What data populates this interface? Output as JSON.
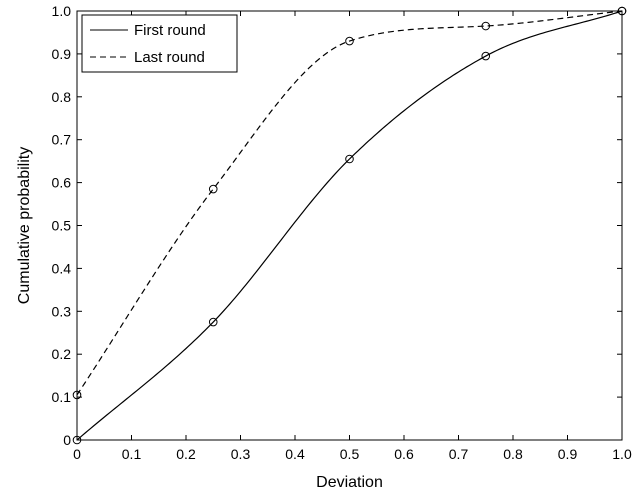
{
  "chart_data": {
    "type": "line",
    "xlabel": "Deviation",
    "ylabel": "Cumulative probability",
    "xlim": [
      0,
      1
    ],
    "ylim": [
      0,
      1
    ],
    "xticks": [
      "0",
      "0.1",
      "0.2",
      "0.3",
      "0.4",
      "0.5",
      "0.6",
      "0.7",
      "0.8",
      "0.9",
      "1.0"
    ],
    "yticks": [
      "0",
      "0.1",
      "0.2",
      "0.3",
      "0.4",
      "0.5",
      "0.6",
      "0.7",
      "0.8",
      "0.9",
      "1.0"
    ],
    "legend_position": "top-left",
    "grid": false,
    "series": [
      {
        "name": "First round",
        "line_style": "solid",
        "color": "#000000",
        "x": [
          0,
          0.25,
          0.5,
          0.75,
          1.0
        ],
        "y": [
          0,
          0.275,
          0.655,
          0.895,
          1.0
        ]
      },
      {
        "name": "Last round",
        "line_style": "dashed",
        "color": "#000000",
        "x": [
          0,
          0.25,
          0.5,
          0.75,
          1.0
        ],
        "y": [
          0.105,
          0.585,
          0.93,
          0.965,
          1.0
        ]
      }
    ]
  }
}
